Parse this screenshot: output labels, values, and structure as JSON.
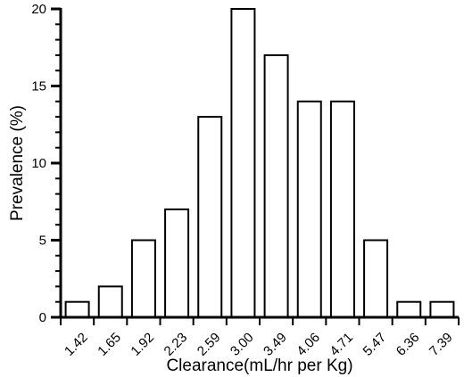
{
  "chart_data": {
    "type": "bar",
    "title": "",
    "xlabel": "Clearance(mL/hr per Kg)",
    "ylabel": "Prevalence (%)",
    "categories": [
      "1.42",
      "1.65",
      "1.92",
      "2.23",
      "2.59",
      "3.00",
      "3.49",
      "4.06",
      "4.71",
      "5.47",
      "6.36",
      "7.39"
    ],
    "values": [
      1,
      2,
      5,
      7,
      13,
      20,
      17,
      14,
      14,
      5,
      1,
      1
    ],
    "ylim": [
      0,
      20
    ],
    "yticks": [
      "0",
      "5",
      "10",
      "15",
      "20"
    ],
    "y_minor_step": 1,
    "grid": false,
    "legend": "none",
    "bar_fill": "#ffffff",
    "bar_stroke": "#000000"
  }
}
